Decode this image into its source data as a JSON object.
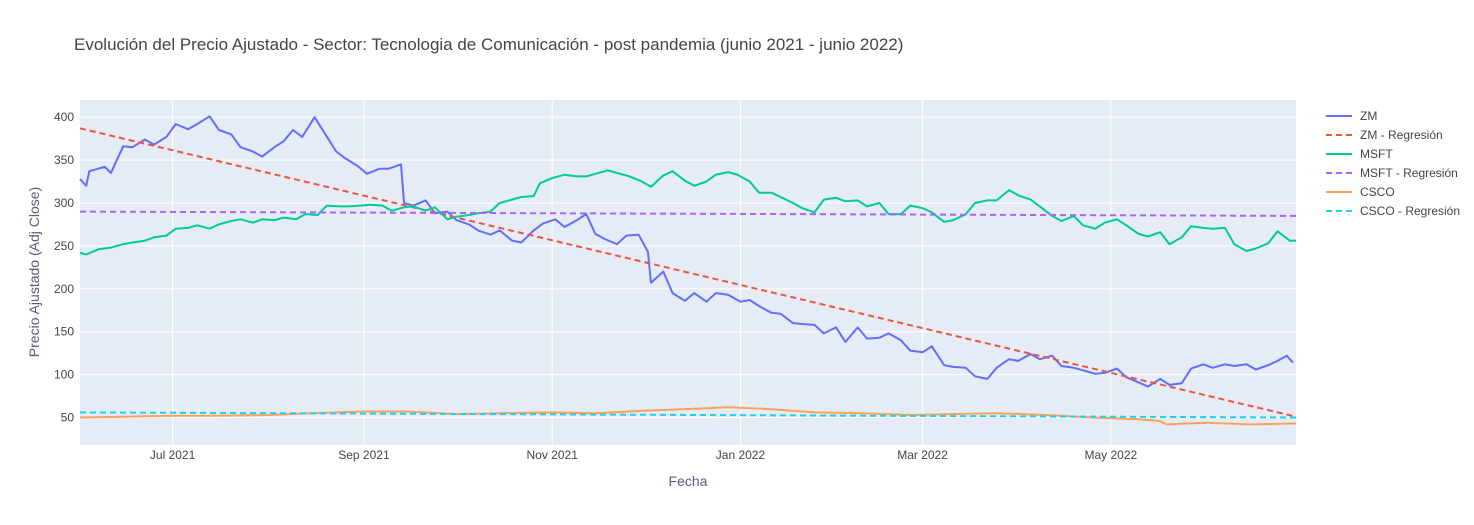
{
  "chart_data": {
    "type": "line",
    "title": "Evolución del Precio Ajustado - Sector: Tecnologia de Comunicación - post pandemia (junio 2021 - junio 2022)",
    "xlabel": "Fecha",
    "ylabel": "Precio Ajustado (Adj Close)",
    "xlim": [
      "2021-06-01",
      "2022-06-30"
    ],
    "ylim": [
      18,
      420
    ],
    "x_ticks": [
      {
        "date": "2021-07-01",
        "label": "Jul 2021"
      },
      {
        "date": "2021-09-01",
        "label": "Sep 2021"
      },
      {
        "date": "2021-11-01",
        "label": "Nov 2021"
      },
      {
        "date": "2022-01-01",
        "label": "Jan 2022"
      },
      {
        "date": "2022-03-01",
        "label": "Mar 2022"
      },
      {
        "date": "2022-05-01",
        "label": "May 2022"
      }
    ],
    "y_ticks": [
      50,
      100,
      150,
      200,
      250,
      300,
      350,
      400
    ],
    "grid": true,
    "legend_position": "right",
    "plot_background": "#e5ecf6",
    "series": [
      {
        "name": "ZM",
        "color": "#636efa",
        "dash": "solid",
        "points": [
          [
            "2021-06-01",
            328
          ],
          [
            "2021-06-03",
            320
          ],
          [
            "2021-06-04",
            337
          ],
          [
            "2021-06-09",
            342
          ],
          [
            "2021-06-11",
            335
          ],
          [
            "2021-06-15",
            366
          ],
          [
            "2021-06-18",
            365
          ],
          [
            "2021-06-22",
            374
          ],
          [
            "2021-06-25",
            368
          ],
          [
            "2021-06-29",
            377
          ],
          [
            "2021-07-02",
            392
          ],
          [
            "2021-07-06",
            386
          ],
          [
            "2021-07-09",
            392
          ],
          [
            "2021-07-13",
            401
          ],
          [
            "2021-07-16",
            385
          ],
          [
            "2021-07-20",
            380
          ],
          [
            "2021-07-23",
            365
          ],
          [
            "2021-07-27",
            360
          ],
          [
            "2021-07-30",
            354
          ],
          [
            "2021-08-03",
            365
          ],
          [
            "2021-08-06",
            372
          ],
          [
            "2021-08-09",
            385
          ],
          [
            "2021-08-12",
            377
          ],
          [
            "2021-08-16",
            400
          ],
          [
            "2021-08-19",
            383
          ],
          [
            "2021-08-23",
            360
          ],
          [
            "2021-08-26",
            352
          ],
          [
            "2021-08-30",
            343
          ],
          [
            "2021-09-02",
            334
          ],
          [
            "2021-09-06",
            340
          ],
          [
            "2021-09-09",
            340
          ],
          [
            "2021-09-13",
            345
          ],
          [
            "2021-09-14",
            300
          ],
          [
            "2021-09-17",
            297
          ],
          [
            "2021-09-21",
            303
          ],
          [
            "2021-09-24",
            288
          ],
          [
            "2021-09-28",
            290
          ],
          [
            "2021-10-01",
            280
          ],
          [
            "2021-10-05",
            275
          ],
          [
            "2021-10-08",
            268
          ],
          [
            "2021-10-12",
            263
          ],
          [
            "2021-10-15",
            268
          ],
          [
            "2021-10-19",
            256
          ],
          [
            "2021-10-22",
            254
          ],
          [
            "2021-10-26",
            268
          ],
          [
            "2021-10-29",
            276
          ],
          [
            "2021-11-02",
            281
          ],
          [
            "2021-11-05",
            272
          ],
          [
            "2021-11-09",
            280
          ],
          [
            "2021-11-12",
            287
          ],
          [
            "2021-11-15",
            264
          ],
          [
            "2021-11-18",
            258
          ],
          [
            "2021-11-22",
            252
          ],
          [
            "2021-11-25",
            262
          ],
          [
            "2021-11-29",
            263
          ],
          [
            "2021-12-02",
            243
          ],
          [
            "2021-12-03",
            207
          ],
          [
            "2021-12-07",
            220
          ],
          [
            "2021-12-10",
            195
          ],
          [
            "2021-12-14",
            186
          ],
          [
            "2021-12-17",
            195
          ],
          [
            "2021-12-21",
            185
          ],
          [
            "2021-12-24",
            195
          ],
          [
            "2021-12-28",
            193
          ],
          [
            "2022-01-01",
            185
          ],
          [
            "2022-01-04",
            187
          ],
          [
            "2022-01-07",
            180
          ],
          [
            "2022-01-11",
            172
          ],
          [
            "2022-01-14",
            171
          ],
          [
            "2022-01-18",
            160
          ],
          [
            "2022-01-21",
            159
          ],
          [
            "2022-01-25",
            158
          ],
          [
            "2022-01-28",
            148
          ],
          [
            "2022-02-01",
            155
          ],
          [
            "2022-02-04",
            138
          ],
          [
            "2022-02-08",
            155
          ],
          [
            "2022-02-11",
            142
          ],
          [
            "2022-02-15",
            143
          ],
          [
            "2022-02-18",
            148
          ],
          [
            "2022-02-22",
            140
          ],
          [
            "2022-02-25",
            128
          ],
          [
            "2022-03-01",
            126
          ],
          [
            "2022-03-04",
            133
          ],
          [
            "2022-03-08",
            111
          ],
          [
            "2022-03-11",
            109
          ],
          [
            "2022-03-15",
            108
          ],
          [
            "2022-03-18",
            98
          ],
          [
            "2022-03-22",
            95
          ],
          [
            "2022-03-25",
            108
          ],
          [
            "2022-03-29",
            118
          ],
          [
            "2022-04-01",
            116
          ],
          [
            "2022-04-05",
            124
          ],
          [
            "2022-04-08",
            118
          ],
          [
            "2022-04-12",
            122
          ],
          [
            "2022-04-15",
            110
          ],
          [
            "2022-04-19",
            108
          ],
          [
            "2022-04-22",
            105
          ],
          [
            "2022-04-26",
            101
          ],
          [
            "2022-04-29",
            102
          ],
          [
            "2022-05-03",
            107
          ],
          [
            "2022-05-06",
            97
          ],
          [
            "2022-05-10",
            91
          ],
          [
            "2022-05-13",
            86
          ],
          [
            "2022-05-17",
            95
          ],
          [
            "2022-05-20",
            88
          ],
          [
            "2022-05-24",
            90
          ],
          [
            "2022-05-27",
            107
          ],
          [
            "2022-05-31",
            112
          ],
          [
            "2022-06-03",
            108
          ],
          [
            "2022-06-07",
            112
          ],
          [
            "2022-06-10",
            110
          ],
          [
            "2022-06-14",
            112
          ],
          [
            "2022-06-17",
            106
          ],
          [
            "2022-06-21",
            111
          ],
          [
            "2022-06-24",
            116
          ],
          [
            "2022-06-27",
            122
          ],
          [
            "2022-06-29",
            114
          ]
        ]
      },
      {
        "name": "ZM - Regresión",
        "color": "#ef553b",
        "dash": "dash",
        "points": [
          [
            "2021-06-01",
            387
          ],
          [
            "2022-06-30",
            51
          ]
        ]
      },
      {
        "name": "MSFT",
        "color": "#00cc96",
        "dash": "solid",
        "points": [
          [
            "2021-06-01",
            242
          ],
          [
            "2021-06-03",
            240
          ],
          [
            "2021-06-07",
            246
          ],
          [
            "2021-06-11",
            248
          ],
          [
            "2021-06-15",
            252
          ],
          [
            "2021-06-18",
            254
          ],
          [
            "2021-06-22",
            256
          ],
          [
            "2021-06-25",
            260
          ],
          [
            "2021-06-29",
            262
          ],
          [
            "2021-07-02",
            270
          ],
          [
            "2021-07-06",
            271
          ],
          [
            "2021-07-09",
            274
          ],
          [
            "2021-07-13",
            270
          ],
          [
            "2021-07-16",
            275
          ],
          [
            "2021-07-20",
            279
          ],
          [
            "2021-07-23",
            281
          ],
          [
            "2021-07-27",
            277
          ],
          [
            "2021-07-30",
            281
          ],
          [
            "2021-08-03",
            280
          ],
          [
            "2021-08-06",
            283
          ],
          [
            "2021-08-10",
            281
          ],
          [
            "2021-08-13",
            287
          ],
          [
            "2021-08-17",
            286
          ],
          [
            "2021-08-20",
            297
          ],
          [
            "2021-08-24",
            296
          ],
          [
            "2021-08-27",
            296
          ],
          [
            "2021-08-31",
            297
          ],
          [
            "2021-09-03",
            298
          ],
          [
            "2021-09-07",
            297
          ],
          [
            "2021-09-10",
            291
          ],
          [
            "2021-09-14",
            295
          ],
          [
            "2021-09-17",
            296
          ],
          [
            "2021-09-21",
            291
          ],
          [
            "2021-09-24",
            295
          ],
          [
            "2021-09-28",
            281
          ],
          [
            "2021-10-01",
            284
          ],
          [
            "2021-10-05",
            286
          ],
          [
            "2021-10-08",
            288
          ],
          [
            "2021-10-12",
            290
          ],
          [
            "2021-10-15",
            300
          ],
          [
            "2021-10-19",
            304
          ],
          [
            "2021-10-22",
            307
          ],
          [
            "2021-10-26",
            308
          ],
          [
            "2021-10-28",
            323
          ],
          [
            "2021-11-01",
            329
          ],
          [
            "2021-11-05",
            333
          ],
          [
            "2021-11-09",
            331
          ],
          [
            "2021-11-12",
            331
          ],
          [
            "2021-11-16",
            335
          ],
          [
            "2021-11-19",
            338
          ],
          [
            "2021-11-23",
            334
          ],
          [
            "2021-11-26",
            331
          ],
          [
            "2021-11-30",
            325
          ],
          [
            "2021-12-03",
            319
          ],
          [
            "2021-12-07",
            332
          ],
          [
            "2021-12-10",
            337
          ],
          [
            "2021-12-14",
            326
          ],
          [
            "2021-12-17",
            320
          ],
          [
            "2021-12-21",
            325
          ],
          [
            "2021-12-24",
            333
          ],
          [
            "2021-12-28",
            336
          ],
          [
            "2021-12-31",
            333
          ],
          [
            "2022-01-04",
            325
          ],
          [
            "2022-01-07",
            312
          ],
          [
            "2022-01-11",
            312
          ],
          [
            "2022-01-14",
            307
          ],
          [
            "2022-01-18",
            300
          ],
          [
            "2022-01-21",
            294
          ],
          [
            "2022-01-25",
            289
          ],
          [
            "2022-01-28",
            304
          ],
          [
            "2022-02-01",
            306
          ],
          [
            "2022-02-04",
            302
          ],
          [
            "2022-02-08",
            303
          ],
          [
            "2022-02-11",
            296
          ],
          [
            "2022-02-15",
            300
          ],
          [
            "2022-02-18",
            287
          ],
          [
            "2022-02-22",
            287
          ],
          [
            "2022-02-25",
            297
          ],
          [
            "2022-03-01",
            294
          ],
          [
            "2022-03-04",
            289
          ],
          [
            "2022-03-08",
            278
          ],
          [
            "2022-03-11",
            280
          ],
          [
            "2022-03-15",
            287
          ],
          [
            "2022-03-18",
            300
          ],
          [
            "2022-03-22",
            303
          ],
          [
            "2022-03-25",
            303
          ],
          [
            "2022-03-29",
            315
          ],
          [
            "2022-04-01",
            309
          ],
          [
            "2022-04-05",
            304
          ],
          [
            "2022-04-08",
            296
          ],
          [
            "2022-04-12",
            285
          ],
          [
            "2022-04-15",
            279
          ],
          [
            "2022-04-19",
            285
          ],
          [
            "2022-04-22",
            274
          ],
          [
            "2022-04-26",
            270
          ],
          [
            "2022-04-29",
            277
          ],
          [
            "2022-05-03",
            281
          ],
          [
            "2022-05-06",
            274
          ],
          [
            "2022-05-10",
            264
          ],
          [
            "2022-05-13",
            261
          ],
          [
            "2022-05-17",
            266
          ],
          [
            "2022-05-20",
            252
          ],
          [
            "2022-05-24",
            260
          ],
          [
            "2022-05-27",
            273
          ],
          [
            "2022-05-31",
            271
          ],
          [
            "2022-06-03",
            270
          ],
          [
            "2022-06-07",
            271
          ],
          [
            "2022-06-10",
            252
          ],
          [
            "2022-06-14",
            244
          ],
          [
            "2022-06-17",
            247
          ],
          [
            "2022-06-21",
            253
          ],
          [
            "2022-06-24",
            267
          ],
          [
            "2022-06-28",
            256
          ],
          [
            "2022-06-30",
            256
          ]
        ]
      },
      {
        "name": "MSFT - Regresión",
        "color": "#ab63fa",
        "dash": "dash",
        "points": [
          [
            "2021-06-01",
            290
          ],
          [
            "2022-06-30",
            285
          ]
        ]
      },
      {
        "name": "CSCO",
        "color": "#ffa15a",
        "dash": "solid",
        "points": [
          [
            "2021-06-01",
            50
          ],
          [
            "2021-06-15",
            51
          ],
          [
            "2021-07-01",
            52
          ],
          [
            "2021-07-15",
            52
          ],
          [
            "2021-08-01",
            53
          ],
          [
            "2021-08-15",
            55
          ],
          [
            "2021-09-01",
            57
          ],
          [
            "2021-09-15",
            57
          ],
          [
            "2021-10-01",
            54
          ],
          [
            "2021-10-15",
            55
          ],
          [
            "2021-11-01",
            56
          ],
          [
            "2021-11-15",
            55
          ],
          [
            "2021-12-01",
            58
          ],
          [
            "2021-12-15",
            60
          ],
          [
            "2021-12-28",
            62
          ],
          [
            "2022-01-10",
            60
          ],
          [
            "2022-01-25",
            56
          ],
          [
            "2022-02-10",
            55
          ],
          [
            "2022-02-25",
            53
          ],
          [
            "2022-03-10",
            54
          ],
          [
            "2022-03-25",
            55
          ],
          [
            "2022-04-10",
            53
          ],
          [
            "2022-04-25",
            50
          ],
          [
            "2022-05-10",
            48
          ],
          [
            "2022-05-17",
            46
          ],
          [
            "2022-05-19",
            42
          ],
          [
            "2022-06-01",
            44
          ],
          [
            "2022-06-15",
            42
          ],
          [
            "2022-06-30",
            43
          ]
        ]
      },
      {
        "name": "CSCO - Regresión",
        "color": "#19d3f3",
        "dash": "dash",
        "points": [
          [
            "2021-06-01",
            56
          ],
          [
            "2022-06-30",
            50
          ]
        ]
      }
    ]
  }
}
